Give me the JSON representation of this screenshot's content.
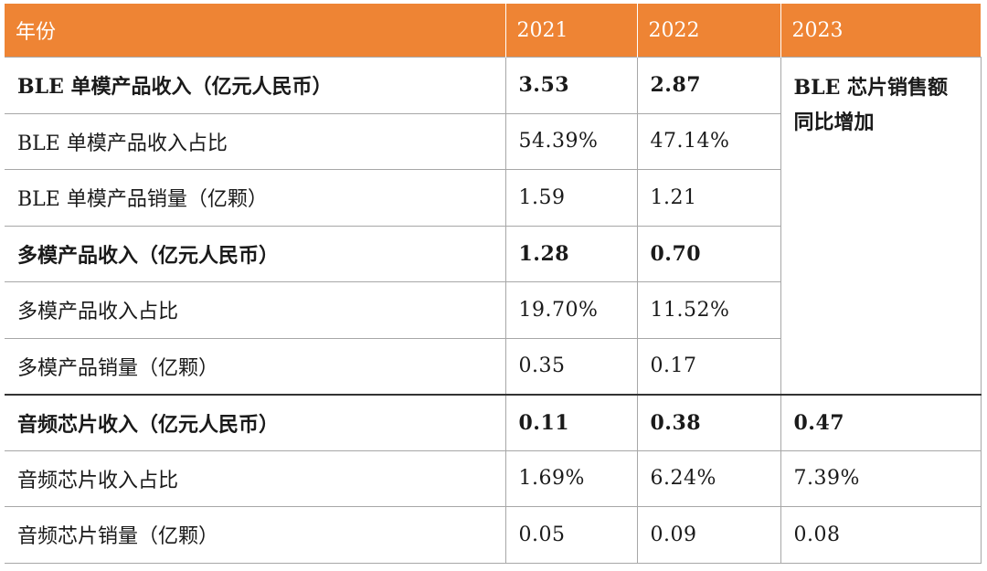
{
  "table": {
    "headers": [
      "年份",
      "2021",
      "2022",
      "2023"
    ],
    "rows": [
      {
        "label": "BLE 单模产品收入（亿元人民币）",
        "y2021": "3.53",
        "y2022": "2.87",
        "bold": true
      },
      {
        "label": "BLE 单模产品收入占比",
        "y2021": "54.39%",
        "y2022": "47.14%",
        "bold": false
      },
      {
        "label": "BLE 单模产品销量（亿颗）",
        "y2021": "1.59",
        "y2022": "1.21",
        "bold": false
      },
      {
        "label": "多模产品收入（亿元人民币）",
        "y2021": "1.28",
        "y2022": "0.70",
        "bold": true
      },
      {
        "label": "多模产品收入占比",
        "y2021": "19.70%",
        "y2022": "11.52%",
        "bold": false
      },
      {
        "label": "多模产品销量（亿颗）",
        "y2021": "0.35",
        "y2022": "0.17",
        "bold": false
      },
      {
        "label": "音频芯片收入（亿元人民币）",
        "y2021": "0.11",
        "y2022": "0.38",
        "y2023": "0.47",
        "bold": true
      },
      {
        "label": "音频芯片收入占比",
        "y2021": "1.69%",
        "y2022": "6.24%",
        "y2023": "7.39%",
        "bold": false
      },
      {
        "label": "音频芯片销量（亿颗）",
        "y2021": "0.05",
        "y2022": "0.09",
        "y2023": "0.08",
        "bold": false
      }
    ],
    "merged_note": "BLE 芯片销售额同比增加"
  }
}
